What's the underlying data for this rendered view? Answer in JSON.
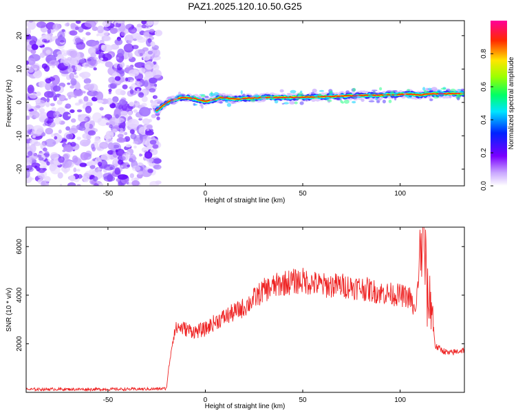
{
  "figure": {
    "title": "PAZ1.2025.120.10.50.G25"
  },
  "chart_data": [
    {
      "type": "heatmap",
      "title": "PAZ1.2025.120.10.50.G25",
      "xlabel": "Height of straight line (km)",
      "ylabel": "Frequency (Hz)",
      "xlim": [
        -92,
        133
      ],
      "ylim": [
        -25,
        24.5
      ],
      "x_ticks": [
        -50,
        0,
        50,
        100
      ],
      "y_ticks": [
        -20,
        -10,
        0,
        10,
        20
      ],
      "x_tick_labels": [
        "-50",
        "0",
        "50",
        "100"
      ],
      "y_tick_labels": [
        "-20",
        "-10",
        "0",
        "10",
        "20"
      ],
      "noise_region_x": [
        -92,
        -24
      ],
      "ridge": {
        "x": [
          -25,
          -22,
          -18,
          -12,
          -6,
          0,
          4,
          8,
          15,
          20,
          30,
          45,
          55,
          65,
          75,
          90,
          105,
          110,
          115,
          125,
          133
        ],
        "y": [
          -2.5,
          -1.0,
          0.5,
          1.5,
          1.2,
          0.3,
          0.8,
          1.5,
          1.0,
          1.2,
          1.5,
          1.5,
          1.6,
          1.8,
          2.0,
          2.2,
          2.5,
          2.2,
          2.6,
          2.6,
          2.7
        ]
      },
      "colorbar": {
        "label": "Normalized spectral amplitude",
        "range": [
          0,
          1
        ],
        "ticks": [
          0.0,
          0.2,
          0.4,
          0.6,
          0.8
        ],
        "tick_labels": [
          "0.0",
          "0.2",
          "0.4",
          "0.6",
          "0.8"
        ]
      }
    },
    {
      "type": "line",
      "xlabel": "Height of straight line (km)",
      "ylabel": "SNR (10 * v/v)",
      "xlim": [
        -92,
        133
      ],
      "ylim": [
        0,
        6800
      ],
      "x_ticks": [
        -50,
        0,
        50,
        100
      ],
      "y_ticks": [
        2000,
        4000,
        6000
      ],
      "x_tick_labels": [
        "-50",
        "0",
        "50",
        "100"
      ],
      "y_tick_labels": [
        "2000",
        "4000",
        "6000"
      ],
      "line_color": "#ee2222",
      "series": [
        {
          "x": [
            -92,
            -80,
            -60,
            -40,
            -25,
            -20,
            -18,
            -16,
            -14,
            -10,
            -5,
            0,
            5,
            10,
            20,
            30,
            40,
            50,
            60,
            70,
            80,
            90,
            100,
            105,
            108,
            110,
            112,
            114,
            116,
            118,
            120,
            125,
            130,
            133
          ],
          "values": [
            120,
            130,
            125,
            130,
            140,
            160,
            1500,
            2500,
            2700,
            2600,
            2500,
            2600,
            2900,
            3100,
            3500,
            4200,
            4500,
            4600,
            4400,
            4400,
            4300,
            4100,
            4000,
            3900,
            3200,
            5500,
            6700,
            3800,
            3800,
            1900,
            1800,
            1600,
            1700,
            1750
          ]
        }
      ]
    }
  ]
}
